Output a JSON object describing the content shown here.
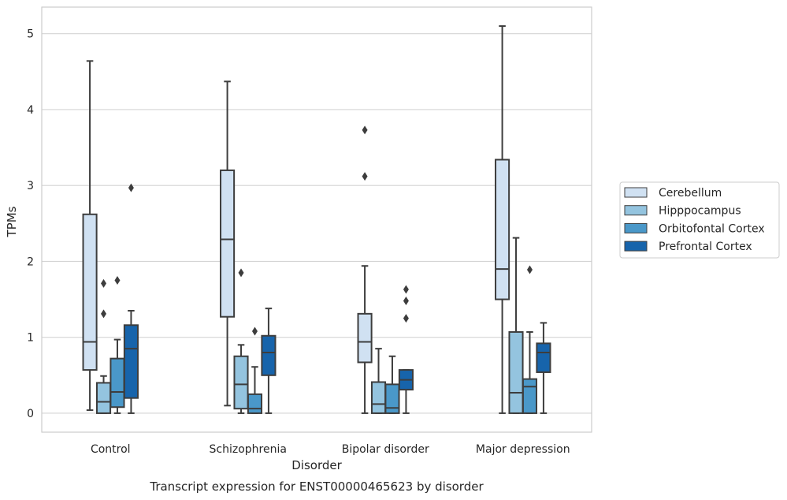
{
  "chart_data": {
    "type": "boxplot",
    "title": "Transcript expression for ENST00000465623 by disorder",
    "xlabel": "Disorder",
    "ylabel": "TPMs",
    "ylim": [
      -0.25,
      5.35
    ],
    "yticks": [
      0,
      1,
      2,
      3,
      4,
      5
    ],
    "grid": "horizontal",
    "legend_position": "right",
    "categories": [
      "Control",
      "Schizophrenia",
      "Bipolar disorder",
      "Major depression"
    ],
    "series": [
      {
        "name": "Cerebellum",
        "color": "#d0e1f2",
        "boxes": [
          {
            "whislo": 0.04,
            "q1": 0.57,
            "med": 0.94,
            "q3": 2.62,
            "whishi": 4.64,
            "fliers": []
          },
          {
            "whislo": 0.1,
            "q1": 1.27,
            "med": 2.29,
            "q3": 3.2,
            "whishi": 4.37,
            "fliers": []
          },
          {
            "whislo": 0.0,
            "q1": 0.67,
            "med": 0.94,
            "q3": 1.31,
            "whishi": 1.94,
            "fliers": [
              3.12,
              3.73
            ]
          },
          {
            "whislo": 0.0,
            "q1": 1.5,
            "med": 1.9,
            "q3": 3.34,
            "whishi": 5.1,
            "fliers": []
          }
        ]
      },
      {
        "name": "Hipppocampus",
        "color": "#94c4df",
        "boxes": [
          {
            "whislo": 0.0,
            "q1": 0.0,
            "med": 0.15,
            "q3": 0.4,
            "whishi": 0.49,
            "fliers": [
              1.31,
              1.71
            ]
          },
          {
            "whislo": 0.0,
            "q1": 0.06,
            "med": 0.38,
            "q3": 0.75,
            "whishi": 0.9,
            "fliers": [
              1.85
            ]
          },
          {
            "whislo": 0.0,
            "q1": 0.0,
            "med": 0.12,
            "q3": 0.41,
            "whishi": 0.85,
            "fliers": []
          },
          {
            "whislo": 0.0,
            "q1": 0.0,
            "med": 0.27,
            "q3": 1.07,
            "whishi": 2.31,
            "fliers": []
          }
        ]
      },
      {
        "name": "Orbitofontal Cortex",
        "color": "#4a98c9",
        "boxes": [
          {
            "whislo": 0.0,
            "q1": 0.08,
            "med": 0.28,
            "q3": 0.72,
            "whishi": 0.97,
            "fliers": [
              1.75
            ]
          },
          {
            "whislo": 0.0,
            "q1": 0.0,
            "med": 0.06,
            "q3": 0.25,
            "whishi": 0.61,
            "fliers": [
              1.08
            ]
          },
          {
            "whislo": 0.0,
            "q1": 0.0,
            "med": 0.07,
            "q3": 0.38,
            "whishi": 0.75,
            "fliers": []
          },
          {
            "whislo": 0.0,
            "q1": 0.0,
            "med": 0.35,
            "q3": 0.45,
            "whishi": 1.07,
            "fliers": [
              1.89
            ]
          }
        ]
      },
      {
        "name": "Prefrontal Cortex",
        "color": "#1764ab",
        "boxes": [
          {
            "whislo": 0.0,
            "q1": 0.2,
            "med": 0.85,
            "q3": 1.16,
            "whishi": 1.35,
            "fliers": [
              2.97
            ]
          },
          {
            "whislo": 0.0,
            "q1": 0.5,
            "med": 0.8,
            "q3": 1.02,
            "whishi": 1.38,
            "fliers": []
          },
          {
            "whislo": 0.0,
            "q1": 0.31,
            "med": 0.44,
            "q3": 0.57,
            "whishi": 0.57,
            "fliers": [
              1.25,
              1.48,
              1.63
            ]
          },
          {
            "whislo": 0.0,
            "q1": 0.54,
            "med": 0.8,
            "q3": 0.92,
            "whishi": 1.19,
            "fliers": []
          }
        ]
      }
    ]
  }
}
